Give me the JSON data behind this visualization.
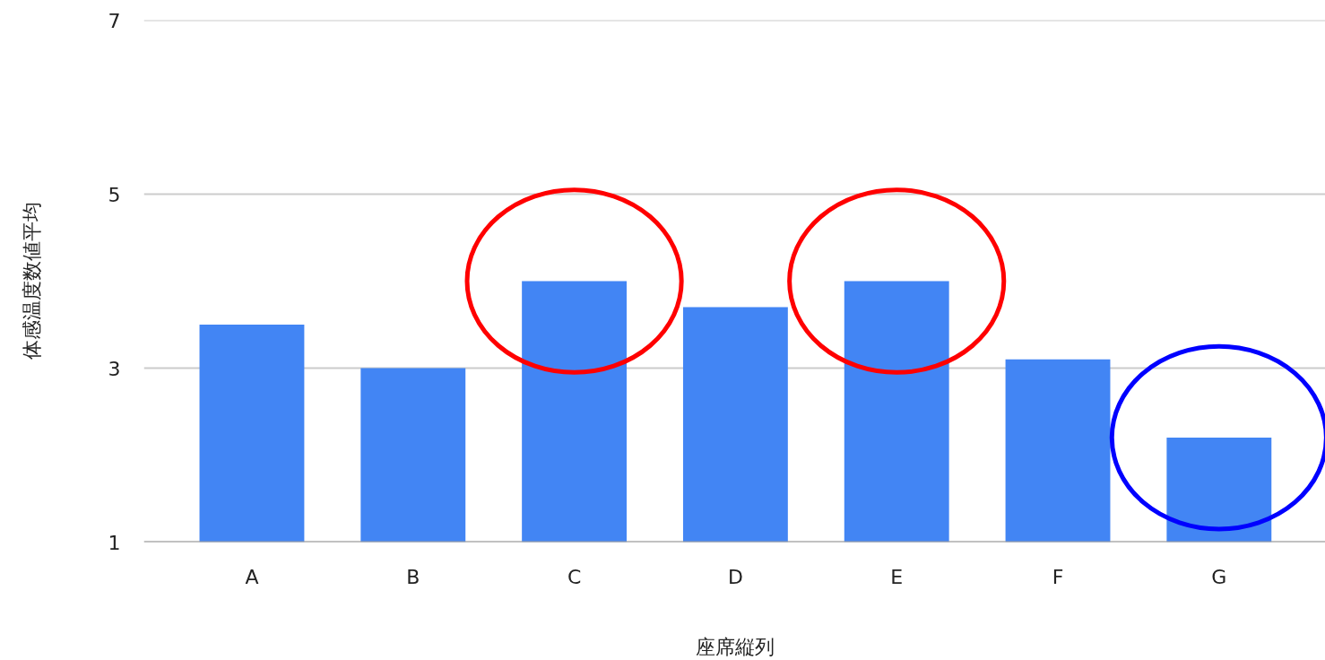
{
  "chart_data": {
    "type": "bar",
    "xlabel": "座席縦列",
    "ylabel": "体感温度数値平均",
    "categories": [
      "A",
      "B",
      "C",
      "D",
      "E",
      "F",
      "G"
    ],
    "values": [
      3.5,
      3.0,
      4.0,
      3.7,
      4.0,
      3.1,
      2.2
    ],
    "color": "#4285f4",
    "ylim": [
      1,
      7
    ],
    "yticks": [
      1,
      3,
      5,
      7
    ],
    "grid": "y"
  }
}
